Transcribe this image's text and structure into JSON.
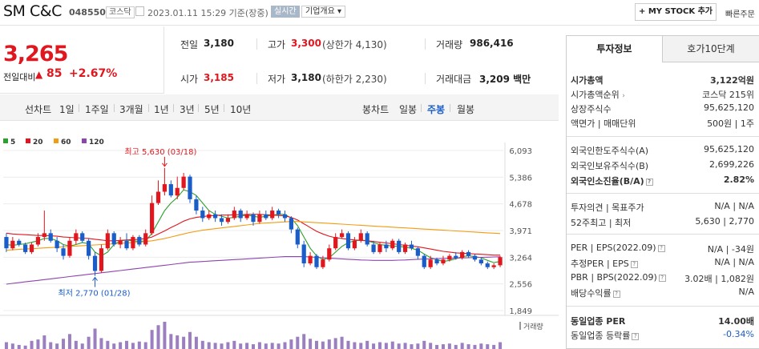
{
  "header": {
    "company": "SM C&C",
    "code": "048550",
    "market": "코스닥",
    "date": "2023.01.11 15:29 기준(장중)",
    "live": "실시간",
    "overview": "기업개요 ▾",
    "mystock": "+ MY STOCK 추가",
    "quick": "빠른주문"
  },
  "price": {
    "current": "3,265",
    "change_label": "전일대비",
    "change_arrow": "▲",
    "change": "85",
    "percent": "+2.67%"
  },
  "stats": {
    "prev_label": "전일",
    "prev": "3,180",
    "high_label": "고가",
    "high": "3,300",
    "upper_limit": "(상한가 4,130)",
    "volume_label": "거래량",
    "volume": "986,416",
    "open_label": "시가",
    "open": "3,185",
    "low_label": "저가",
    "low": "3,180",
    "lower_limit": "(하한가 2,230)",
    "amount_label": "거래대금",
    "amount": "3,209 백만"
  },
  "periods": {
    "line_label": "선차트",
    "items": [
      "1일",
      "1주일",
      "3개월",
      "1년",
      "3년",
      "5년",
      "10년"
    ],
    "candle_label": "봉차트",
    "candle_items": [
      "일봉",
      "주봉",
      "월봉"
    ],
    "active": "주봉"
  },
  "chart_data": {
    "type": "candlestick",
    "legend": [
      {
        "name": "5",
        "color": "#2ca02c"
      },
      {
        "name": "20",
        "color": "#e0171e"
      },
      {
        "name": "60",
        "color": "#f39c12"
      },
      {
        "name": "120",
        "color": "#8e44ad"
      }
    ],
    "y_ticks": [
      "6,093",
      "5,386",
      "4,678",
      "3,971",
      "3,264",
      "2,556",
      "1,849"
    ],
    "ylim": [
      1849,
      6093
    ],
    "high_annotation": "최고 5,630 (03/18)",
    "low_annotation": "최저 2,770 (01/28)",
    "volume_label": "거래량",
    "candles": [
      [
        3800,
        3500,
        3900,
        3400
      ],
      [
        3500,
        3700,
        3800,
        3450
      ],
      [
        3700,
        3600,
        3750,
        3550
      ],
      [
        3600,
        3400,
        3650,
        3350
      ],
      [
        3400,
        3600,
        3650,
        3350
      ],
      [
        3600,
        3800,
        3900,
        3550
      ],
      [
        3800,
        3900,
        4500,
        3700
      ],
      [
        3900,
        3700,
        4000,
        3650
      ],
      [
        3700,
        3500,
        3800,
        3400
      ],
      [
        3500,
        3300,
        3600,
        3200
      ],
      [
        3300,
        3700,
        3800,
        3250
      ],
      [
        3700,
        3900,
        4000,
        3600
      ],
      [
        3900,
        3700,
        3950,
        3650
      ],
      [
        3700,
        3300,
        3750,
        3200
      ],
      [
        3300,
        2900,
        3400,
        2770
      ],
      [
        2900,
        3500,
        3600,
        2850
      ],
      [
        3500,
        3900,
        4000,
        3450
      ],
      [
        3900,
        3600,
        3950,
        3550
      ],
      [
        3600,
        3700,
        3800,
        3500
      ],
      [
        3700,
        3500,
        3900,
        3450
      ],
      [
        3500,
        3800,
        3850,
        3450
      ],
      [
        3800,
        3600,
        3850,
        3550
      ],
      [
        3600,
        3900,
        4000,
        3550
      ],
      [
        3900,
        4700,
        4900,
        3850
      ],
      [
        4700,
        5000,
        5300,
        4650
      ],
      [
        5000,
        5200,
        5630,
        4900
      ],
      [
        5200,
        4900,
        5300,
        4850
      ],
      [
        4900,
        5100,
        5400,
        4800
      ],
      [
        5100,
        5400,
        5500,
        5050
      ],
      [
        5400,
        4800,
        5450,
        4700
      ],
      [
        4800,
        4500,
        4900,
        4400
      ],
      [
        4500,
        4300,
        4600,
        4200
      ],
      [
        4300,
        4400,
        4500,
        4250
      ],
      [
        4400,
        4300,
        4500,
        4200
      ],
      [
        4300,
        4200,
        4400,
        4100
      ],
      [
        4200,
        4300,
        4400,
        4150
      ],
      [
        4300,
        4500,
        4600,
        4250
      ],
      [
        4500,
        4300,
        4550,
        4200
      ],
      [
        4300,
        4400,
        4500,
        4250
      ],
      [
        4400,
        4200,
        4450,
        4100
      ],
      [
        4200,
        4400,
        4500,
        4150
      ],
      [
        4400,
        4300,
        4500,
        4250
      ],
      [
        4300,
        4500,
        4600,
        4250
      ],
      [
        4500,
        4400,
        4550,
        4300
      ],
      [
        4400,
        4300,
        4500,
        4200
      ],
      [
        4300,
        4000,
        4350,
        3900
      ],
      [
        4000,
        3600,
        4050,
        3500
      ],
      [
        3600,
        3100,
        3700,
        3000
      ],
      [
        3100,
        3300,
        3400,
        3050
      ],
      [
        3300,
        3000,
        3350,
        2950
      ],
      [
        3000,
        3200,
        3300,
        2950
      ],
      [
        3200,
        3500,
        3600,
        3150
      ],
      [
        3500,
        3800,
        3900,
        3450
      ],
      [
        3800,
        3900,
        4000,
        3750
      ],
      [
        3900,
        3500,
        3950,
        3450
      ],
      [
        3500,
        3700,
        3800,
        3450
      ],
      [
        3700,
        3900,
        4000,
        3650
      ],
      [
        3900,
        3600,
        3950,
        3550
      ],
      [
        3600,
        3400,
        3700,
        3350
      ],
      [
        3400,
        3600,
        3650,
        3350
      ],
      [
        3600,
        3500,
        3700,
        3400
      ],
      [
        3500,
        3700,
        3750,
        3450
      ],
      [
        3700,
        3400,
        3750,
        3350
      ],
      [
        3400,
        3600,
        3650,
        3350
      ],
      [
        3600,
        3500,
        3700,
        3450
      ],
      [
        3500,
        3300,
        3550,
        3200
      ],
      [
        3300,
        3000,
        3350,
        2950
      ],
      [
        3000,
        3200,
        3300,
        2950
      ],
      [
        3200,
        3100,
        3250,
        3050
      ],
      [
        3100,
        3200,
        3300,
        3050
      ],
      [
        3200,
        3300,
        3350,
        3150
      ],
      [
        3300,
        3250,
        3400,
        3200
      ],
      [
        3250,
        3400,
        3450,
        3200
      ],
      [
        3400,
        3300,
        3450,
        3250
      ],
      [
        3300,
        3200,
        3350,
        3150
      ],
      [
        3200,
        3100,
        3250,
        3050
      ],
      [
        3100,
        3000,
        3150,
        2950
      ],
      [
        3000,
        3050,
        3100,
        2950
      ],
      [
        3050,
        3265,
        3300,
        3000
      ]
    ],
    "ma": {
      "5": [
        3600,
        3580,
        3600,
        3620,
        3660,
        3700,
        3760,
        3760,
        3700,
        3600,
        3560,
        3600,
        3650,
        3620,
        3400,
        3300,
        3400,
        3600,
        3700,
        3720,
        3700,
        3680,
        3700,
        3900,
        4200,
        4500,
        4700,
        4850,
        5050,
        5000,
        4900,
        4700,
        4500,
        4400,
        4350,
        4300,
        4320,
        4350,
        4380,
        4350,
        4320,
        4350,
        4380,
        4400,
        4400,
        4300,
        4100,
        3800,
        3500,
        3300,
        3200,
        3250,
        3400,
        3550,
        3650,
        3700,
        3720,
        3700,
        3650,
        3600,
        3580,
        3560,
        3550,
        3530,
        3500,
        3450,
        3350,
        3250,
        3200,
        3150,
        3180,
        3220,
        3280,
        3300,
        3280,
        3250,
        3180,
        3120,
        3150
      ],
      "20": [
        3900,
        3880,
        3870,
        3860,
        3850,
        3840,
        3840,
        3830,
        3820,
        3800,
        3790,
        3780,
        3770,
        3760,
        3740,
        3720,
        3700,
        3700,
        3710,
        3720,
        3730,
        3740,
        3760,
        3800,
        3880,
        3960,
        4050,
        4130,
        4220,
        4280,
        4320,
        4340,
        4360,
        4370,
        4380,
        4380,
        4390,
        4390,
        4400,
        4400,
        4400,
        4390,
        4380,
        4370,
        4360,
        4320,
        4250,
        4150,
        4050,
        3950,
        3880,
        3820,
        3780,
        3760,
        3740,
        3720,
        3710,
        3700,
        3680,
        3660,
        3640,
        3620,
        3600,
        3580,
        3560,
        3540,
        3510,
        3480,
        3450,
        3420,
        3400,
        3380,
        3370,
        3360,
        3350,
        3340,
        3330,
        3320,
        3320
      ],
      "60": [
        3450,
        3460,
        3470,
        3480,
        3490,
        3500,
        3510,
        3520,
        3530,
        3540,
        3550,
        3560,
        3570,
        3580,
        3590,
        3600,
        3610,
        3620,
        3630,
        3640,
        3650,
        3660,
        3680,
        3700,
        3730,
        3760,
        3800,
        3840,
        3880,
        3920,
        3950,
        3980,
        4000,
        4020,
        4040,
        4060,
        4080,
        4100,
        4120,
        4140,
        4160,
        4170,
        4180,
        4190,
        4200,
        4210,
        4210,
        4200,
        4190,
        4180,
        4170,
        4160,
        4150,
        4140,
        4130,
        4120,
        4110,
        4100,
        4090,
        4080,
        4070,
        4060,
        4050,
        4040,
        4030,
        4020,
        4010,
        4000,
        3990,
        3980,
        3970,
        3960,
        3950,
        3940,
        3930,
        3920,
        3910,
        3900,
        3890
      ],
      "120": [
        2550,
        2570,
        2590,
        2610,
        2630,
        2650,
        2670,
        2690,
        2710,
        2730,
        2750,
        2770,
        2790,
        2810,
        2830,
        2850,
        2870,
        2890,
        2910,
        2930,
        2950,
        2970,
        2990,
        3010,
        3030,
        3050,
        3070,
        3090,
        3110,
        3130,
        3140,
        3150,
        3160,
        3170,
        3180,
        3190,
        3200,
        3210,
        3220,
        3230,
        3240,
        3250,
        3260,
        3270,
        3280,
        3280,
        3280,
        3280,
        3270,
        3260,
        3250,
        3240,
        3230,
        3220,
        3210,
        3200,
        3190,
        3185,
        3180,
        3180,
        3180,
        3180,
        3185,
        3190,
        3200,
        3210,
        3215,
        3220,
        3225,
        3230,
        3235,
        3240,
        3245,
        3250,
        3255,
        3260,
        3265,
        3270,
        3275
      ]
    },
    "volume": [
      10,
      8,
      6,
      5,
      12,
      14,
      20,
      10,
      8,
      15,
      22,
      12,
      8,
      18,
      30,
      16,
      12,
      8,
      10,
      12,
      9,
      11,
      10,
      28,
      35,
      40,
      22,
      20,
      18,
      25,
      18,
      12,
      10,
      9,
      8,
      10,
      12,
      8,
      9,
      7,
      10,
      8,
      9,
      8,
      10,
      14,
      18,
      22,
      15,
      12,
      11,
      14,
      16,
      18,
      12,
      10,
      9,
      12,
      8,
      10,
      9,
      11,
      8,
      9,
      7,
      8,
      12,
      9,
      6,
      7,
      8,
      6,
      9,
      7,
      6,
      8,
      7,
      6,
      10
    ]
  },
  "panel": {
    "tab_info": "투자정보",
    "tab_quote": "호가10단계",
    "rows1": [
      {
        "label": "시가총액",
        "value": "3,122억원",
        "bold": true
      },
      {
        "label": "시가총액순위",
        "value": "코스닥 215위"
      },
      {
        "label": "상장주식수",
        "value": "95,625,120"
      },
      {
        "label": "액면가 | 매매단위",
        "value": "500원 | 1주"
      }
    ],
    "rows2": [
      {
        "label": "외국인한도주식수(A)",
        "value": "95,625,120"
      },
      {
        "label": "외국인보유주식수(B)",
        "value": "2,699,226"
      },
      {
        "label": "외국인소진율(B/A)",
        "value": "2.82%",
        "bold": true
      }
    ],
    "rows3": [
      {
        "label": "투자의견 | 목표주가",
        "value": "N/A | N/A"
      },
      {
        "label": "52주최고 | 최저",
        "value": "5,630 | 2,770"
      }
    ],
    "rows4": [
      {
        "label": "PER | EPS(2022.09)",
        "value": "N/A | -34원"
      },
      {
        "label": "추정PER | EPS",
        "value": "N/A | N/A"
      },
      {
        "label": "PBR | BPS(2022.09)",
        "value": "3.02배 | 1,082원"
      },
      {
        "label": "배당수익률",
        "value": "N/A"
      }
    ],
    "rows5": [
      {
        "label": "동일업종 PER",
        "value": "14.00배",
        "bold": true
      },
      {
        "label": "동일업종 등락률",
        "value": "-0.34%",
        "blue": true
      }
    ]
  }
}
